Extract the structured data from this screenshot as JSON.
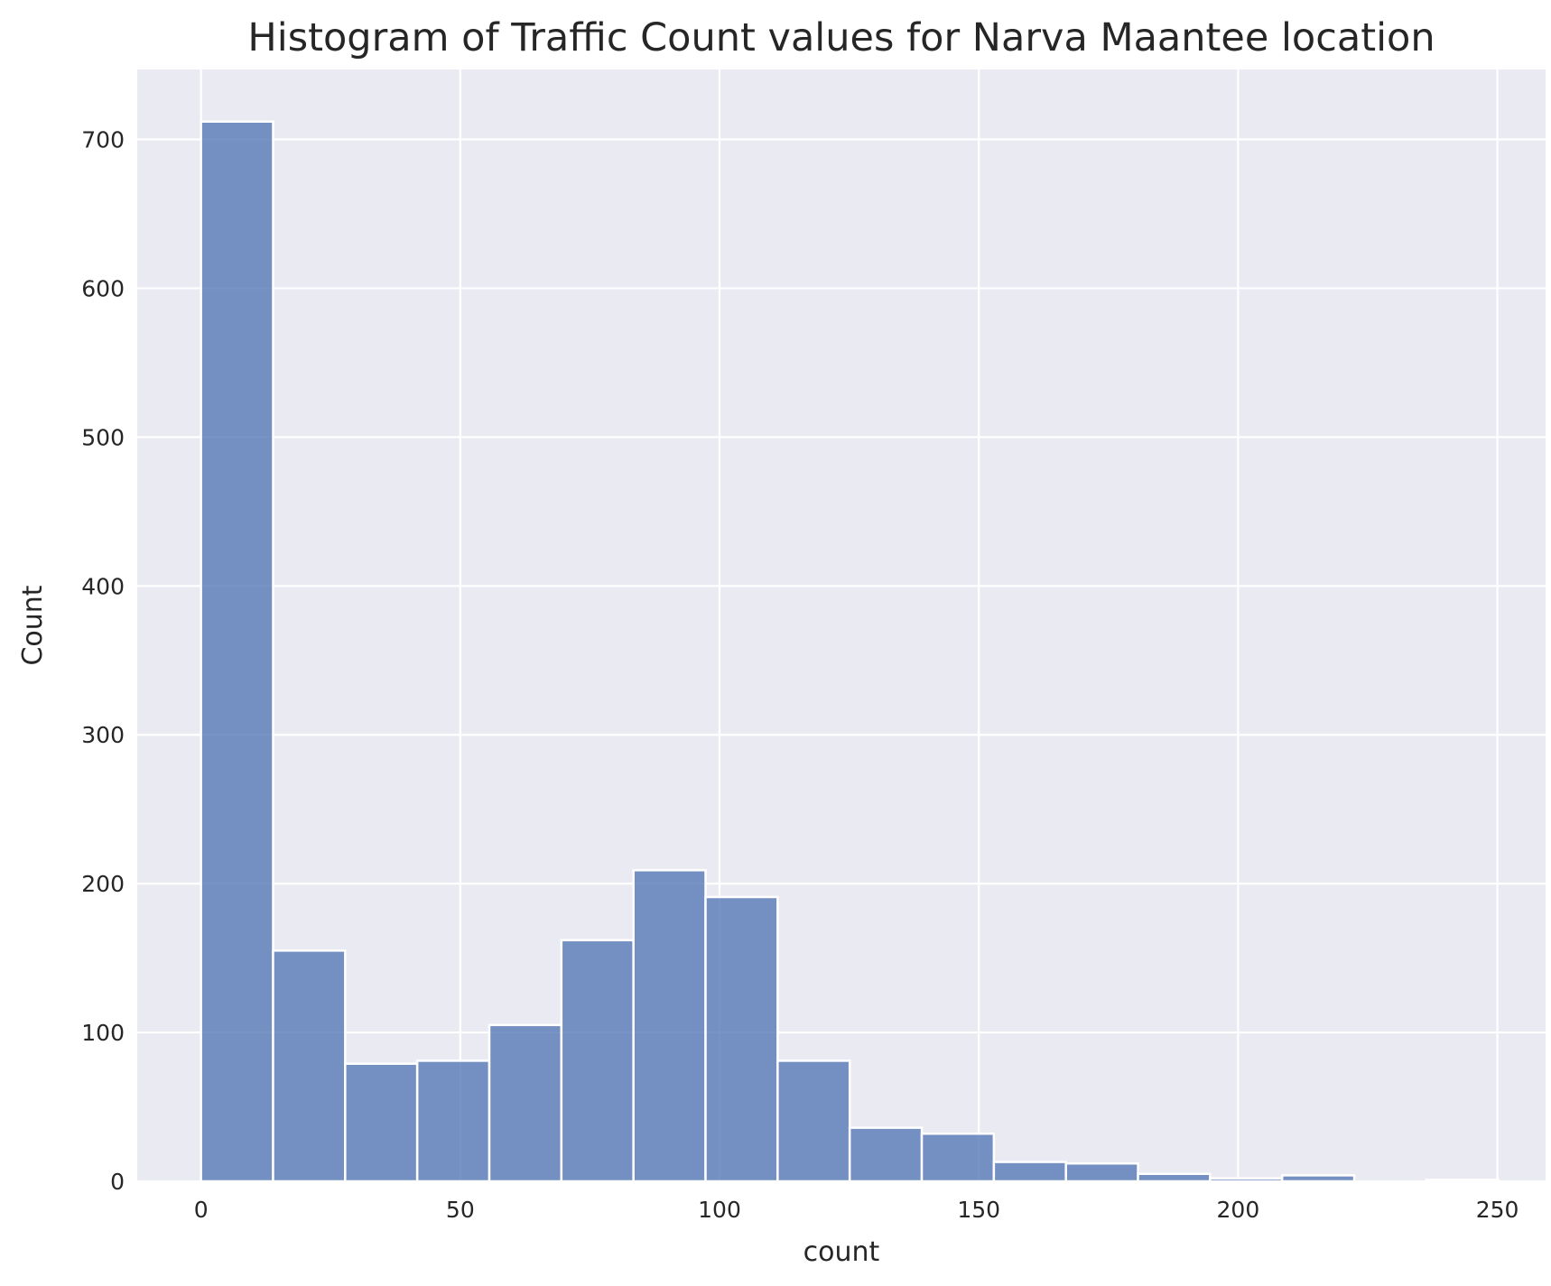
{
  "chart_data": {
    "type": "bar",
    "title": "Histogram of Traffic Count values for Narva Maantee location",
    "xlabel": "count",
    "ylabel": "Count",
    "xlim": [
      -12.3,
      259.3
    ],
    "ylim": [
      0,
      747
    ],
    "xticks": [
      0,
      50,
      100,
      150,
      200,
      250
    ],
    "yticks": [
      0,
      100,
      200,
      300,
      400,
      500,
      600,
      700
    ],
    "grid": true,
    "bin_width": 13.9,
    "bins": [
      {
        "x0": 0.0,
        "x1": 13.9,
        "value": 712
      },
      {
        "x0": 13.9,
        "x1": 27.8,
        "value": 155
      },
      {
        "x0": 27.8,
        "x1": 41.7,
        "value": 79
      },
      {
        "x0": 41.7,
        "x1": 55.6,
        "value": 81
      },
      {
        "x0": 55.6,
        "x1": 69.5,
        "value": 105
      },
      {
        "x0": 69.5,
        "x1": 83.4,
        "value": 162
      },
      {
        "x0": 83.4,
        "x1": 97.3,
        "value": 209
      },
      {
        "x0": 97.3,
        "x1": 111.2,
        "value": 191
      },
      {
        "x0": 111.2,
        "x1": 125.1,
        "value": 81
      },
      {
        "x0": 125.1,
        "x1": 139.0,
        "value": 36
      },
      {
        "x0": 139.0,
        "x1": 152.9,
        "value": 32
      },
      {
        "x0": 152.9,
        "x1": 166.8,
        "value": 13
      },
      {
        "x0": 166.8,
        "x1": 180.7,
        "value": 12
      },
      {
        "x0": 180.7,
        "x1": 194.6,
        "value": 5
      },
      {
        "x0": 194.6,
        "x1": 208.5,
        "value": 2
      },
      {
        "x0": 208.5,
        "x1": 222.4,
        "value": 4
      },
      {
        "x0": 222.4,
        "x1": 236.3,
        "value": 0
      },
      {
        "x0": 236.3,
        "x1": 250.2,
        "value": 1
      }
    ],
    "colors": {
      "bar": "#5a7cb7",
      "background": "#eaeaf2",
      "grid": "#ffffff"
    }
  }
}
